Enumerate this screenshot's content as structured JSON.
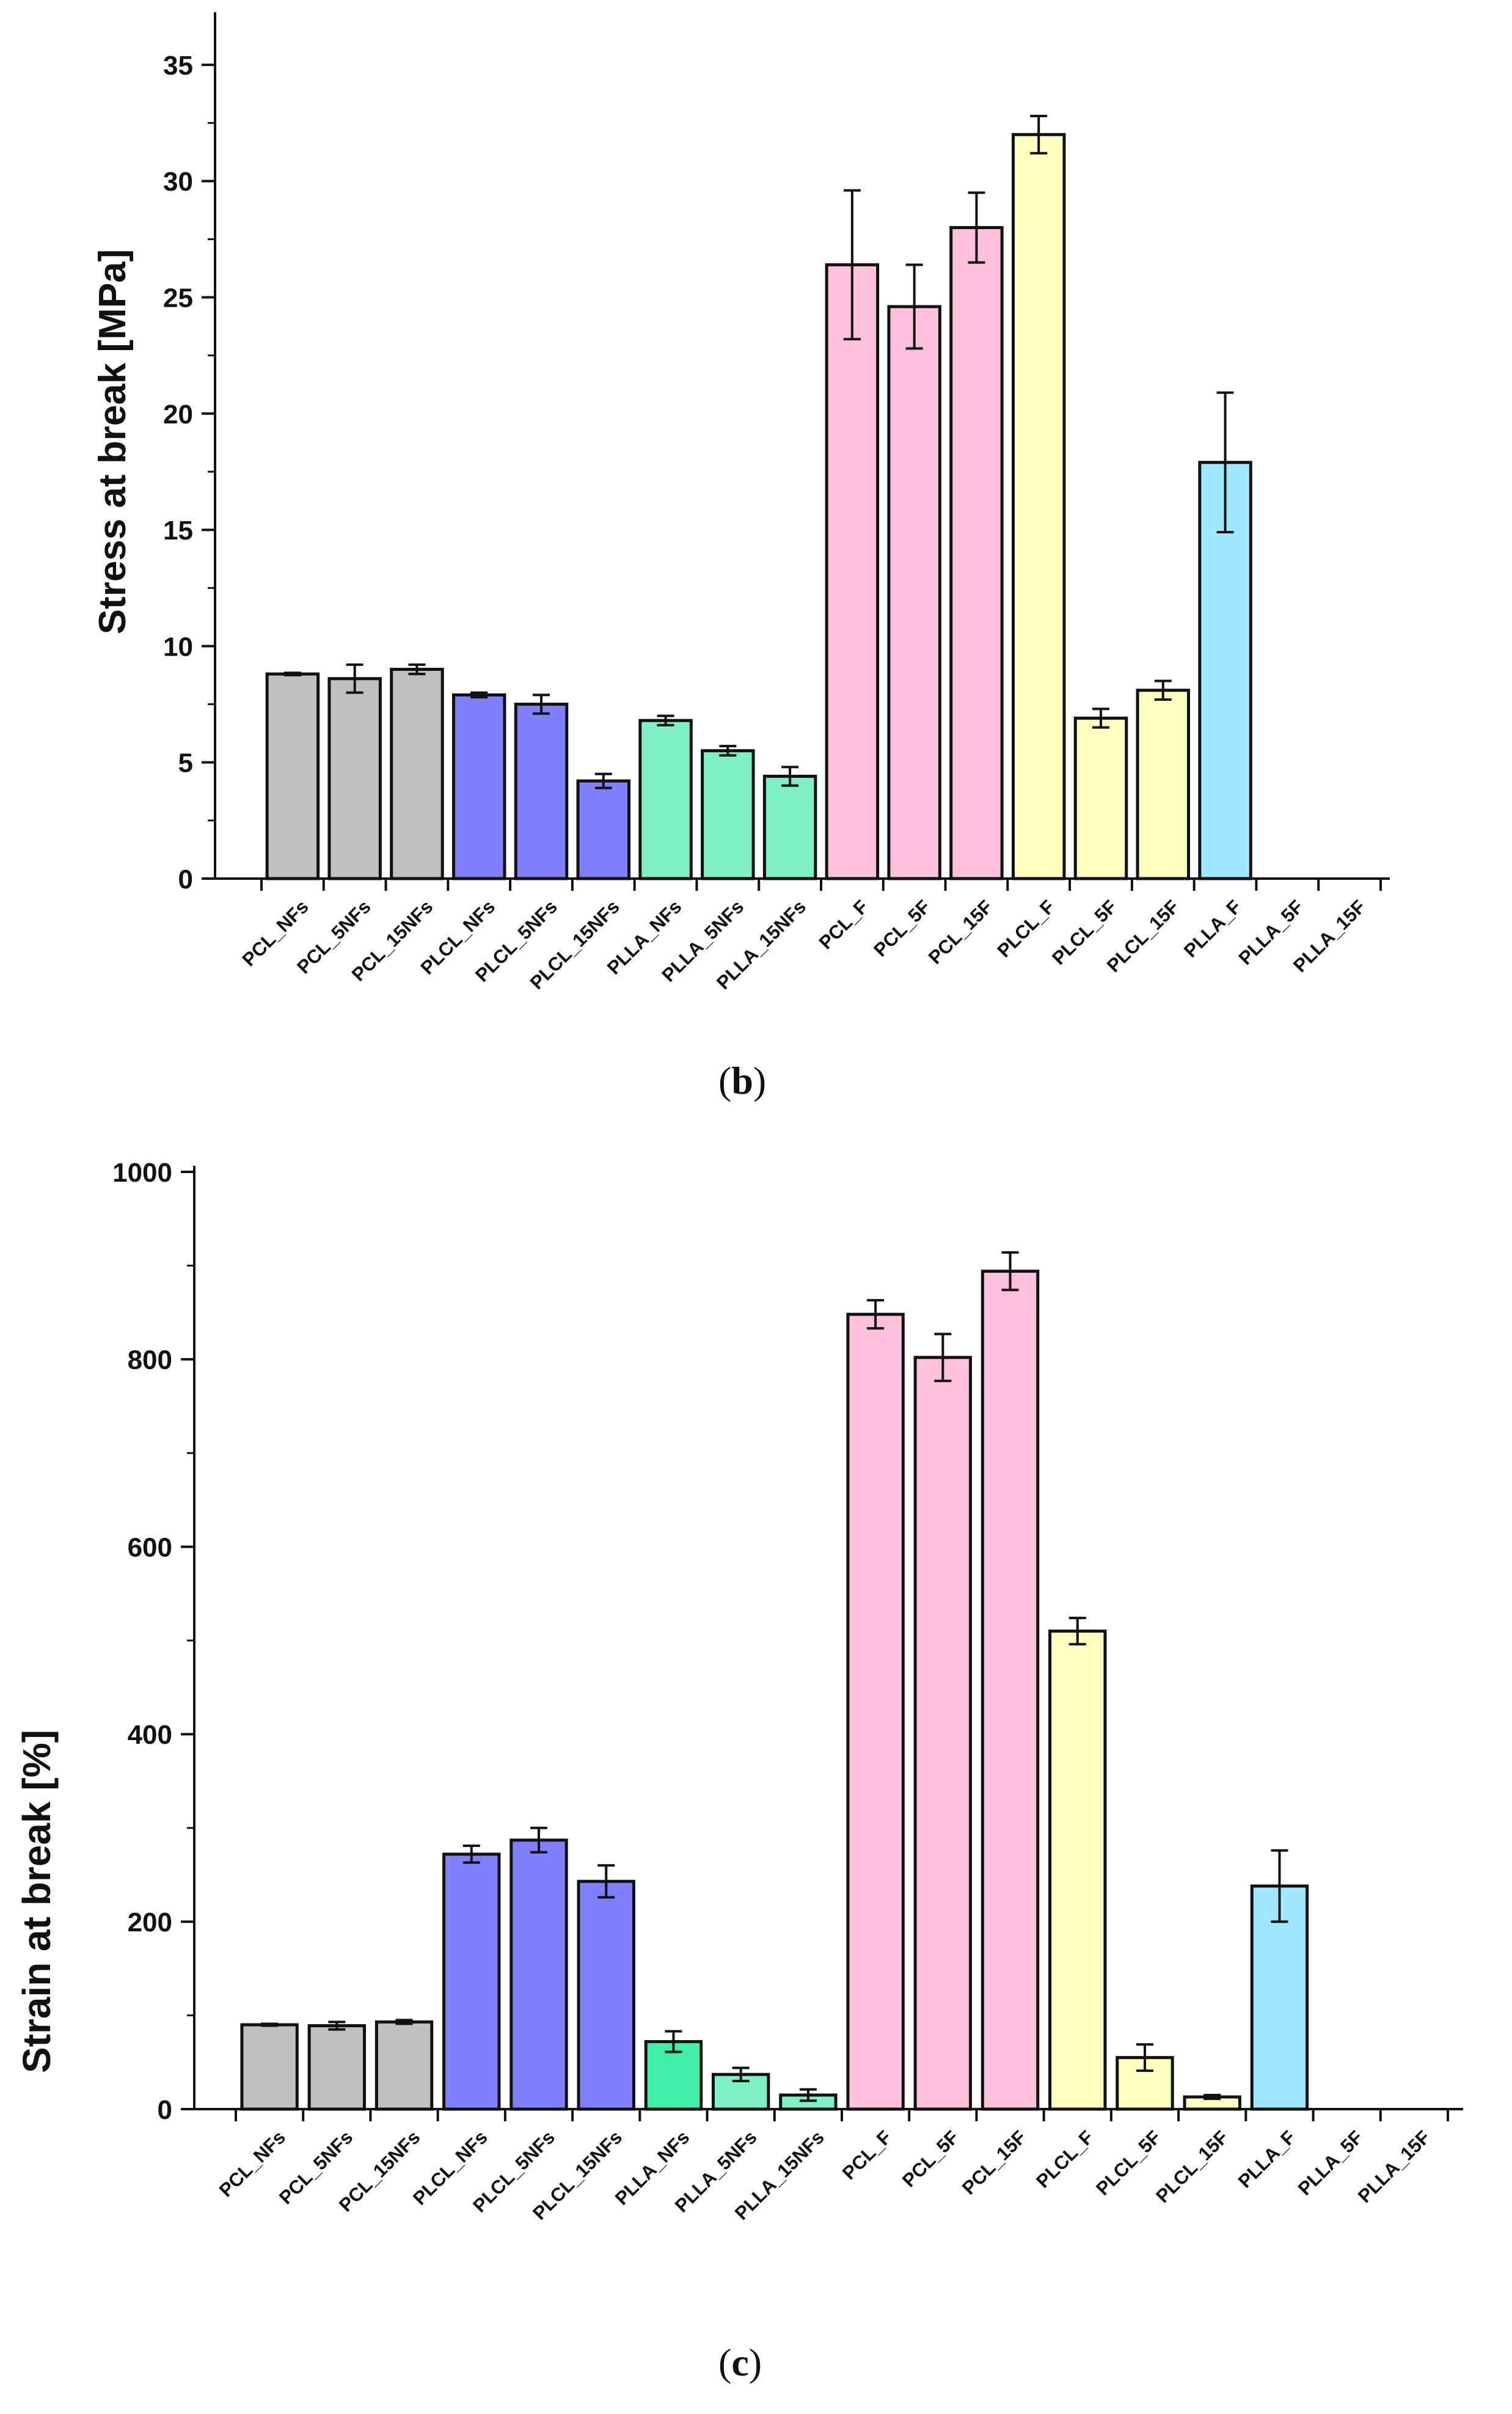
{
  "chart_data": [
    {
      "type": "bar",
      "panel": "b",
      "panel_label": "b",
      "ylabel": "Stress at break [MPa]",
      "xlabel": "",
      "ylim": [
        0,
        37
      ],
      "yticks": [
        0,
        5,
        10,
        15,
        20,
        25,
        30,
        35
      ],
      "grid": false,
      "categories": [
        "PCL_NFs",
        "PCL_5NFs",
        "PCL_15NFs",
        "PLCL_NFs",
        "PLCL_5NFs",
        "PLCL_15NFs",
        "PLLA_NFs",
        "PLLA_5NFs",
        "PLLA_15NFs",
        "PCL_F",
        "PCL_5F",
        "PCL_15F",
        "PLCL_F",
        "PLCL_5F",
        "PLCL_15F",
        "PLLA_F",
        "PLLA_5F",
        "PLLA_15F"
      ],
      "values": [
        8.8,
        8.6,
        9.0,
        7.9,
        7.5,
        4.2,
        6.8,
        5.5,
        4.4,
        26.4,
        24.6,
        28.0,
        32.0,
        6.9,
        8.1,
        17.9,
        null,
        null
      ],
      "errors": [
        0.05,
        0.6,
        0.2,
        0.1,
        0.4,
        0.3,
        0.2,
        0.2,
        0.4,
        3.2,
        1.8,
        1.5,
        0.8,
        0.4,
        0.4,
        3.0,
        null,
        null
      ],
      "colors": [
        "#c0c0c0",
        "#c0c0c0",
        "#c0c0c0",
        "#8080ff",
        "#8080ff",
        "#8080ff",
        "#80f0c8",
        "#80f0c8",
        "#80f0c8",
        "#ffc0dc",
        "#ffc0dc",
        "#ffc0dc",
        "#ffffc0",
        "#ffffc0",
        "#ffffc0",
        "#a0e8ff",
        "#a0e8ff",
        "#a0e8ff"
      ]
    },
    {
      "type": "bar",
      "panel": "c",
      "panel_label": "c",
      "ylabel": "Strain at break  [%]",
      "xlabel": "",
      "ylim": [
        0,
        1000
      ],
      "yticks": [
        0,
        200,
        400,
        600,
        800,
        1000
      ],
      "grid": false,
      "categories": [
        "PCL_NFs",
        "PCL_5NFs",
        "PCL_15NFs",
        "PLCL_NFs",
        "PLCL_5NFs",
        "PLCL_15NFs",
        "PLLA_NFs",
        "PLLA_5NFs",
        "PLLA_15NFs",
        "PCL_F",
        "PCL_5F",
        "PCL_15F",
        "PLCL_F",
        "PLCL_5F",
        "PLCL_15F",
        "PLLA_F",
        "PLLA_5F",
        "PLLA_15F"
      ],
      "values": [
        90,
        89,
        93,
        272,
        287,
        243,
        72,
        37,
        15,
        848,
        802,
        894,
        510,
        55,
        13,
        238,
        null,
        null
      ],
      "errors": [
        1,
        4,
        2,
        9,
        13,
        17,
        11,
        7,
        6,
        15,
        25,
        20,
        14,
        14,
        2,
        38,
        null,
        null
      ],
      "colors": [
        "#c0c0c0",
        "#c0c0c0",
        "#c0c0c0",
        "#8080ff",
        "#8080ff",
        "#8080ff",
        "#40f0a8",
        "#80f0c8",
        "#80f0c8",
        "#ffc0dc",
        "#ffc0dc",
        "#ffc0dc",
        "#ffffc0",
        "#ffffc0",
        "#ffffc0",
        "#a0e8ff",
        "#a0e8ff",
        "#a0e8ff"
      ]
    }
  ]
}
